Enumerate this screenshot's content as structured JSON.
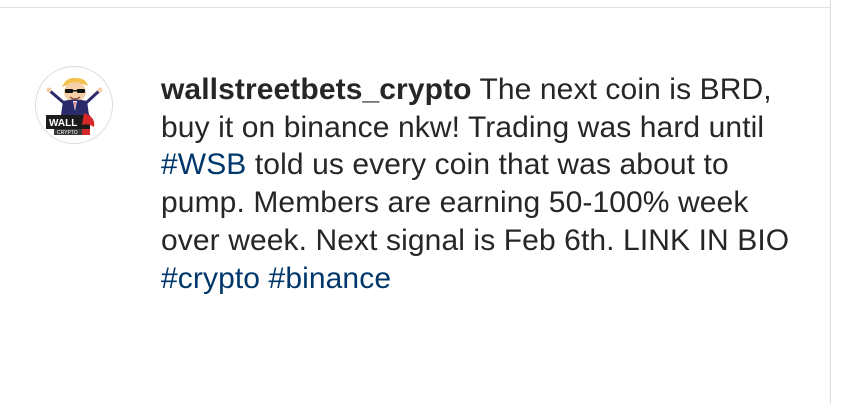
{
  "post": {
    "username": "wallstreetbets_crypto",
    "caption_text": "The next coin is BRD, buy it on binance nkw! Trading was hard until",
    "hashtag_wsb": "#WSB",
    "caption_text_2": "told us every coin that was about to pump. Members are earning 50-100% week over week. Next signal is Feb 6th. LINK IN BIO",
    "hashtag_crypto": "#crypto",
    "hashtag_binance": "#binance"
  },
  "avatar": {
    "logo_text_top": "WALL",
    "logo_text_bottom": "CRYPTO",
    "icon": "wsb-mascot-logo-icon"
  },
  "colors": {
    "text": "#262626",
    "hashtag": "#00376b",
    "border": "#dbdbdb"
  }
}
